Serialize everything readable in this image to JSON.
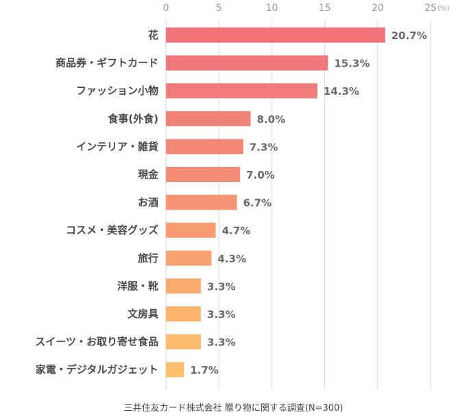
{
  "chart_data": {
    "type": "bar",
    "orientation": "horizontal",
    "categories": [
      "花",
      "商品券・ギフトカード",
      "ファッション小物",
      "食事(外食)",
      "インテリア・雑貨",
      "現金",
      "お酒",
      "コスメ・美容グッズ",
      "旅行",
      "洋服・靴",
      "文房具",
      "スイーツ・お取り寄せ食品",
      "家電・デジタルガジェット"
    ],
    "values": [
      20.7,
      15.3,
      14.3,
      8.0,
      7.3,
      7.0,
      6.7,
      4.7,
      4.3,
      3.3,
      3.3,
      3.3,
      1.7
    ],
    "value_labels": [
      "20.7%",
      "15.3%",
      "14.3%",
      "8.0%",
      "7.3%",
      "7.0%",
      "6.7%",
      "4.7%",
      "4.3%",
      "3.3%",
      "3.3%",
      "3.3%",
      "1.7%"
    ],
    "x_ticks": [
      "0",
      "5",
      "10",
      "15",
      "20",
      "25"
    ],
    "x_unit": "(%)",
    "xlim": [
      0,
      25
    ],
    "grid": true,
    "bar_colors": [
      "#f0737a",
      "#f0777a",
      "#f07d79",
      "#f18278",
      "#f38877",
      "#f48d76",
      "#f59475",
      "#f79c72",
      "#f8a270",
      "#faab6e",
      "#fbb36d",
      "#fcba6c",
      "#fdbf6b"
    ]
  },
  "source": "三井住友カード株式会社 贈り物に関する調査(N=300)"
}
